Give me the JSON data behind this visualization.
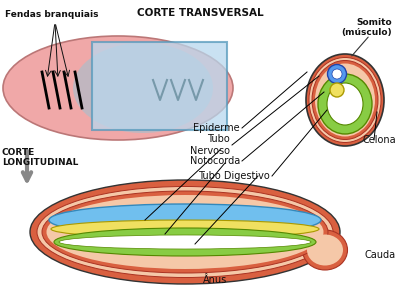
{
  "bg_color": "#ffffff",
  "title_transversal": "CORTE TRANSVERSAL",
  "title_longitudinal": "CORTE\nLONGITUDINAL",
  "label_fendas": "Fendas branquiais",
  "label_somito": "Somito\n(músculo)",
  "label_epiderme": "Epiderme",
  "label_tubo_nervoso": "Tubo\nNervoso",
  "label_notocorda": "Notocorda",
  "label_tubo_digestivo": "Tubo Digestivo",
  "label_celona": "Celona",
  "label_cauda": "Cauda",
  "label_anus": "Ânus",
  "color_body_pink": "#F0A8A8",
  "color_body_shadow": "#A8BFCC",
  "color_outer_red": "#D96040",
  "color_cream": "#F5C8A8",
  "color_blue_tube": "#70BFEE",
  "color_yellow_notochord": "#F0E060",
  "color_green_digestive": "#88CC44",
  "color_cross_blue": "#5599EE",
  "color_cross_yellow": "#F0E060",
  "color_box_blue": "#B8D8EE",
  "color_dark_text": "#111111",
  "color_gray": "#888888",
  "color_white": "#FFFFFF"
}
